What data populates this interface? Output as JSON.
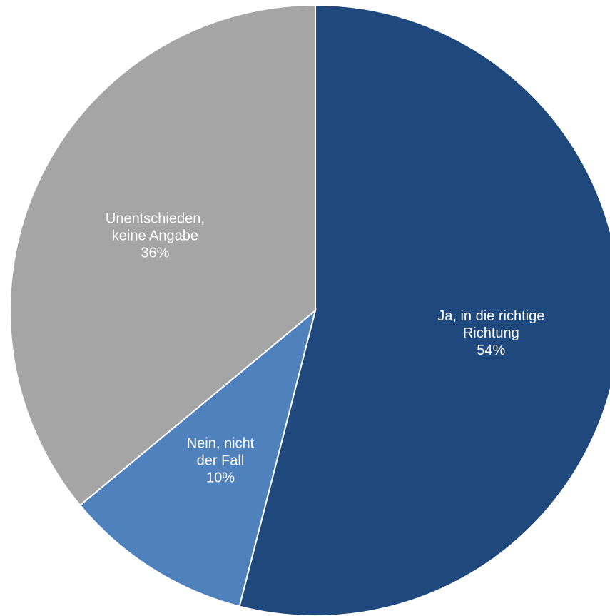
{
  "chart_data": {
    "type": "pie",
    "slices": [
      {
        "label_lines": [
          "Ja, in die richtige",
          "Richtung"
        ],
        "pct_label": "54%",
        "value": 54,
        "color": "#1f497d"
      },
      {
        "label_lines": [
          "Nein, nicht",
          "der Fall"
        ],
        "pct_label": "10%",
        "value": 10,
        "color": "#4f81bd"
      },
      {
        "label_lines": [
          "Unentschieden,",
          "keine Angabe"
        ],
        "pct_label": "36%",
        "value": 36,
        "color": "#a5a5a5"
      }
    ],
    "start_angle_deg": 0,
    "direction": "clockwise",
    "legend": "none",
    "data_labels": "inside"
  }
}
